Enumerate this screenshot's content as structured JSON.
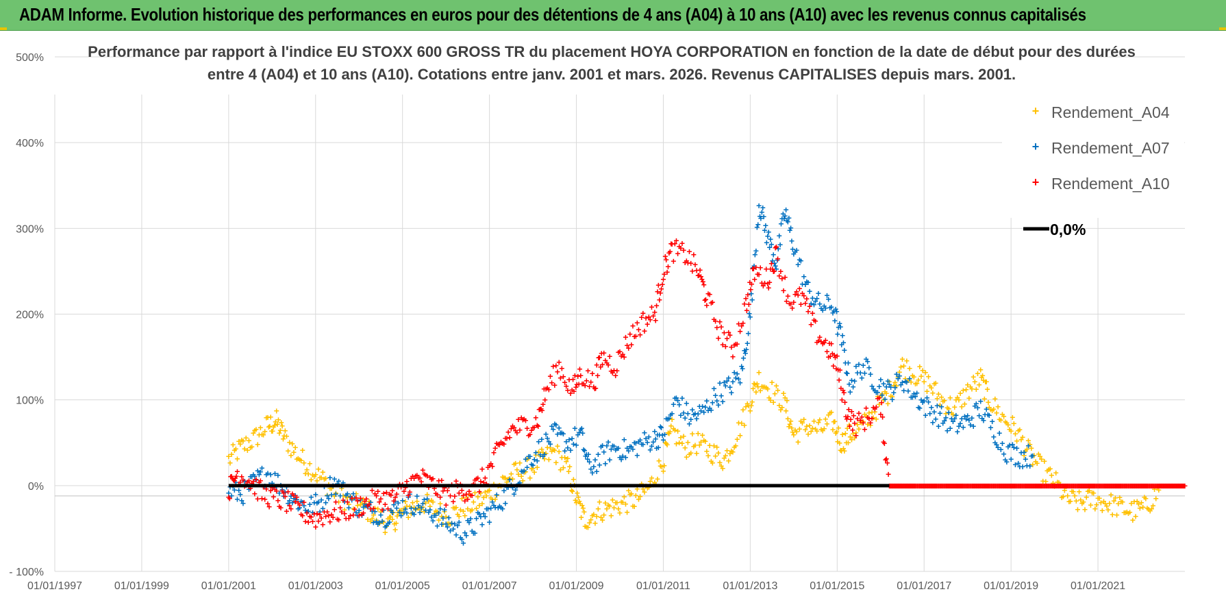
{
  "header": {
    "title": "ADAM Informe. Evolution historique des performances en euros pour des détentions de 4 ans (A04) à 10 ans (A10) avec les revenus connus capitalisés"
  },
  "colors": {
    "banner": "#6fc26f",
    "a04": "#ffc000",
    "a07": "#0070c0",
    "a10": "#ff0000",
    "zero": "#000000",
    "grid": "#d9d9d9"
  },
  "chart_data": {
    "type": "scatter",
    "title_line1": "Performance par rapport à l'indice EU STOXX 600 GROSS TR  du placement HOYA CORPORATION en fonction de la date de début pour des durées",
    "title_line2": "entre 4 (A04) et 10 ans (A10).  Cotations entre janv. 2001 et mars. 2026.  Revenus CAPITALISES depuis mars. 2001.",
    "xlabel": "",
    "ylabel": "",
    "xlim": [
      1997.0,
      2023.0
    ],
    "ylim": [
      -100,
      500
    ],
    "x_ticks": [
      {
        "year": 1997,
        "label": "01/01/1997"
      },
      {
        "year": 1999,
        "label": "01/01/1999"
      },
      {
        "year": 2001,
        "label": "01/01/2001"
      },
      {
        "year": 2003,
        "label": "01/01/2003"
      },
      {
        "year": 2005,
        "label": "01/01/2005"
      },
      {
        "year": 2007,
        "label": "01/01/2007"
      },
      {
        "year": 2009,
        "label": "01/01/2009"
      },
      {
        "year": 2011,
        "label": "01/01/2011"
      },
      {
        "year": 2013,
        "label": "01/01/2013"
      },
      {
        "year": 2015,
        "label": "01/01/2015"
      },
      {
        "year": 2017,
        "label": "01/01/2017"
      },
      {
        "year": 2019,
        "label": "01/01/2019"
      },
      {
        "year": 2021,
        "label": "01/01/2021"
      }
    ],
    "y_ticks": [
      {
        "value": -100,
        "label": "- 100%"
      },
      {
        "value": 0,
        "label": "0%"
      },
      {
        "value": 100,
        "label": "100%"
      },
      {
        "value": 200,
        "label": "200%"
      },
      {
        "value": 300,
        "label": "300%"
      },
      {
        "value": 400,
        "label": "400%"
      },
      {
        "value": 500,
        "label": "500%"
      }
    ],
    "legend_position": "top-right",
    "series": [
      {
        "name": "Rendement_A04",
        "marker": "+",
        "points": [
          [
            2001.0,
            30
          ],
          [
            2001.3,
            45
          ],
          [
            2001.6,
            55
          ],
          [
            2001.9,
            70
          ],
          [
            2002.1,
            75
          ],
          [
            2002.3,
            55
          ],
          [
            2002.6,
            35
          ],
          [
            2002.9,
            20
          ],
          [
            2003.2,
            5
          ],
          [
            2003.5,
            -10
          ],
          [
            2003.8,
            -20
          ],
          [
            2004.1,
            -25
          ],
          [
            2004.4,
            -35
          ],
          [
            2004.7,
            -45
          ],
          [
            2004.9,
            -35
          ],
          [
            2005.2,
            -25
          ],
          [
            2005.5,
            -20
          ],
          [
            2005.8,
            -30
          ],
          [
            2006.1,
            -35
          ],
          [
            2006.4,
            -25
          ],
          [
            2006.7,
            -20
          ],
          [
            2007.0,
            -10
          ],
          [
            2007.3,
            5
          ],
          [
            2007.6,
            15
          ],
          [
            2007.9,
            20
          ],
          [
            2008.2,
            30
          ],
          [
            2008.5,
            40
          ],
          [
            2008.8,
            20
          ],
          [
            2009.0,
            -15
          ],
          [
            2009.2,
            -40
          ],
          [
            2009.5,
            -30
          ],
          [
            2009.8,
            -25
          ],
          [
            2010.1,
            -20
          ],
          [
            2010.4,
            -15
          ],
          [
            2010.7,
            0
          ],
          [
            2011.0,
            30
          ],
          [
            2011.2,
            65
          ],
          [
            2011.5,
            45
          ],
          [
            2011.8,
            50
          ],
          [
            2012.1,
            40
          ],
          [
            2012.4,
            30
          ],
          [
            2012.7,
            60
          ],
          [
            2013.0,
            100
          ],
          [
            2013.2,
            125
          ],
          [
            2013.5,
            110
          ],
          [
            2013.8,
            95
          ],
          [
            2014.0,
            60
          ],
          [
            2014.3,
            70
          ],
          [
            2014.6,
            65
          ],
          [
            2014.9,
            75
          ],
          [
            2015.1,
            50
          ],
          [
            2015.3,
            60
          ],
          [
            2015.6,
            70
          ],
          [
            2015.9,
            90
          ],
          [
            2016.2,
            110
          ],
          [
            2016.5,
            140
          ],
          [
            2016.8,
            130
          ],
          [
            2017.1,
            120
          ],
          [
            2017.4,
            100
          ],
          [
            2017.7,
            90
          ],
          [
            2018.0,
            110
          ],
          [
            2018.3,
            125
          ],
          [
            2018.5,
            100
          ],
          [
            2018.8,
            80
          ],
          [
            2019.1,
            65
          ],
          [
            2019.4,
            40
          ],
          [
            2019.7,
            20
          ],
          [
            2020.0,
            5
          ],
          [
            2020.3,
            -15
          ],
          [
            2020.6,
            -20
          ],
          [
            2020.9,
            -15
          ],
          [
            2021.2,
            -20
          ],
          [
            2021.5,
            -25
          ],
          [
            2021.8,
            -30
          ],
          [
            2022.1,
            -25
          ],
          [
            2022.4,
            -5
          ]
        ]
      },
      {
        "name": "Rendement_A07",
        "marker": "+",
        "points": [
          [
            2001.0,
            -5
          ],
          [
            2001.3,
            -10
          ],
          [
            2001.6,
            5
          ],
          [
            2001.9,
            15
          ],
          [
            2002.2,
            0
          ],
          [
            2002.5,
            -15
          ],
          [
            2002.8,
            -25
          ],
          [
            2003.1,
            -20
          ],
          [
            2003.4,
            5
          ],
          [
            2003.7,
            -10
          ],
          [
            2004.0,
            -25
          ],
          [
            2004.3,
            -30
          ],
          [
            2004.6,
            -35
          ],
          [
            2004.9,
            -25
          ],
          [
            2005.2,
            -20
          ],
          [
            2005.5,
            -25
          ],
          [
            2005.8,
            -35
          ],
          [
            2006.1,
            -45
          ],
          [
            2006.4,
            -55
          ],
          [
            2006.7,
            -45
          ],
          [
            2007.0,
            -30
          ],
          [
            2007.3,
            -15
          ],
          [
            2007.6,
            5
          ],
          [
            2007.9,
            30
          ],
          [
            2008.2,
            45
          ],
          [
            2008.5,
            60
          ],
          [
            2008.8,
            50
          ],
          [
            2009.1,
            60
          ],
          [
            2009.3,
            20
          ],
          [
            2009.6,
            35
          ],
          [
            2009.9,
            45
          ],
          [
            2010.2,
            40
          ],
          [
            2010.5,
            50
          ],
          [
            2010.8,
            55
          ],
          [
            2011.0,
            60
          ],
          [
            2011.3,
            100
          ],
          [
            2011.6,
            80
          ],
          [
            2011.9,
            85
          ],
          [
            2012.2,
            105
          ],
          [
            2012.5,
            115
          ],
          [
            2012.8,
            130
          ],
          [
            2013.0,
            200
          ],
          [
            2013.2,
            330
          ],
          [
            2013.4,
            290
          ],
          [
            2013.6,
            260
          ],
          [
            2013.8,
            320
          ],
          [
            2014.0,
            280
          ],
          [
            2014.3,
            230
          ],
          [
            2014.6,
            210
          ],
          [
            2014.9,
            210
          ],
          [
            2015.1,
            170
          ],
          [
            2015.3,
            120
          ],
          [
            2015.6,
            140
          ],
          [
            2015.9,
            120
          ],
          [
            2016.2,
            110
          ],
          [
            2016.5,
            125
          ],
          [
            2016.8,
            105
          ],
          [
            2017.1,
            90
          ],
          [
            2017.4,
            80
          ],
          [
            2017.7,
            70
          ],
          [
            2018.0,
            75
          ],
          [
            2018.3,
            90
          ],
          [
            2018.6,
            65
          ],
          [
            2018.9,
            40
          ],
          [
            2019.2,
            35
          ],
          [
            2019.5,
            35
          ]
        ]
      },
      {
        "name": "Rendement_A10",
        "marker": "+",
        "points": [
          [
            2001.0,
            -5
          ],
          [
            2001.2,
            15
          ],
          [
            2001.5,
            5
          ],
          [
            2001.8,
            -10
          ],
          [
            2002.1,
            -15
          ],
          [
            2002.4,
            -20
          ],
          [
            2002.7,
            -30
          ],
          [
            2003.0,
            -38
          ],
          [
            2003.3,
            -32
          ],
          [
            2003.6,
            -30
          ],
          [
            2003.9,
            -25
          ],
          [
            2004.2,
            -20
          ],
          [
            2004.5,
            -15
          ],
          [
            2004.8,
            -15
          ],
          [
            2005.1,
            0
          ],
          [
            2005.4,
            10
          ],
          [
            2005.7,
            0
          ],
          [
            2006.0,
            -10
          ],
          [
            2006.3,
            -5
          ],
          [
            2006.6,
            -5
          ],
          [
            2006.9,
            10
          ],
          [
            2007.2,
            40
          ],
          [
            2007.5,
            65
          ],
          [
            2007.8,
            70
          ],
          [
            2008.1,
            75
          ],
          [
            2008.3,
            110
          ],
          [
            2008.6,
            140
          ],
          [
            2008.9,
            110
          ],
          [
            2009.1,
            130
          ],
          [
            2009.4,
            120
          ],
          [
            2009.6,
            150
          ],
          [
            2009.9,
            140
          ],
          [
            2010.2,
            170
          ],
          [
            2010.5,
            190
          ],
          [
            2010.8,
            200
          ],
          [
            2011.0,
            250
          ],
          [
            2011.2,
            275
          ],
          [
            2011.5,
            270
          ],
          [
            2011.8,
            250
          ],
          [
            2012.0,
            220
          ],
          [
            2012.3,
            180
          ],
          [
            2012.6,
            160
          ],
          [
            2012.9,
            210
          ],
          [
            2013.1,
            250
          ],
          [
            2013.4,
            240
          ],
          [
            2013.6,
            270
          ],
          [
            2013.9,
            215
          ],
          [
            2014.2,
            220
          ],
          [
            2014.5,
            180
          ],
          [
            2014.8,
            160
          ],
          [
            2015.0,
            140
          ],
          [
            2015.2,
            90
          ],
          [
            2015.4,
            70
          ],
          [
            2015.7,
            80
          ],
          [
            2016.0,
            95
          ],
          [
            2016.2,
            0
          ],
          [
            2016.8,
            0
          ],
          [
            2017.5,
            0
          ],
          [
            2018.2,
            0
          ],
          [
            2018.9,
            0
          ],
          [
            2019.6,
            0
          ],
          [
            2020.3,
            0
          ],
          [
            2021.0,
            0
          ],
          [
            2021.7,
            0
          ],
          [
            2022.4,
            0
          ],
          [
            2023.0,
            0
          ]
        ]
      }
    ],
    "reference_line": {
      "name": "0,0%",
      "value": 0,
      "x_range": [
        2001.0,
        2016.2
      ]
    }
  }
}
